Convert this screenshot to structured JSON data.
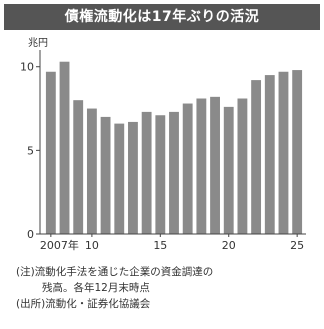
{
  "chart_data": {
    "type": "bar",
    "title": "債権流動化は17年ぶりの活況",
    "ylabel": "兆円",
    "ylim": [
      0,
      11
    ],
    "yticks": [
      0,
      5,
      10
    ],
    "x": [
      2007,
      2008,
      2009,
      2010,
      2011,
      2012,
      2013,
      2014,
      2015,
      2016,
      2017,
      2018,
      2019,
      2020,
      2021,
      2022,
      2023,
      2024,
      2025
    ],
    "x_tick_labels": [
      {
        "x": 2007,
        "label": "2007年"
      },
      {
        "x": 2010,
        "label": "10"
      },
      {
        "x": 2015,
        "label": "15"
      },
      {
        "x": 2020,
        "label": "20"
      },
      {
        "x": 2025,
        "label": "25"
      }
    ],
    "values": [
      9.7,
      10.3,
      8.0,
      7.5,
      7.0,
      6.6,
      6.7,
      7.3,
      7.1,
      7.3,
      7.8,
      8.1,
      8.2,
      7.6,
      8.1,
      9.2,
      9.5,
      9.7,
      9.8
    ],
    "grid": false,
    "bar_color": "#8a8a8a"
  },
  "notes": {
    "line1": "(注)流動化手法を通じた企業の資金調達の",
    "line2": "残高。各年12月末時点",
    "line3": "(出所)流動化・証券化協議会"
  }
}
